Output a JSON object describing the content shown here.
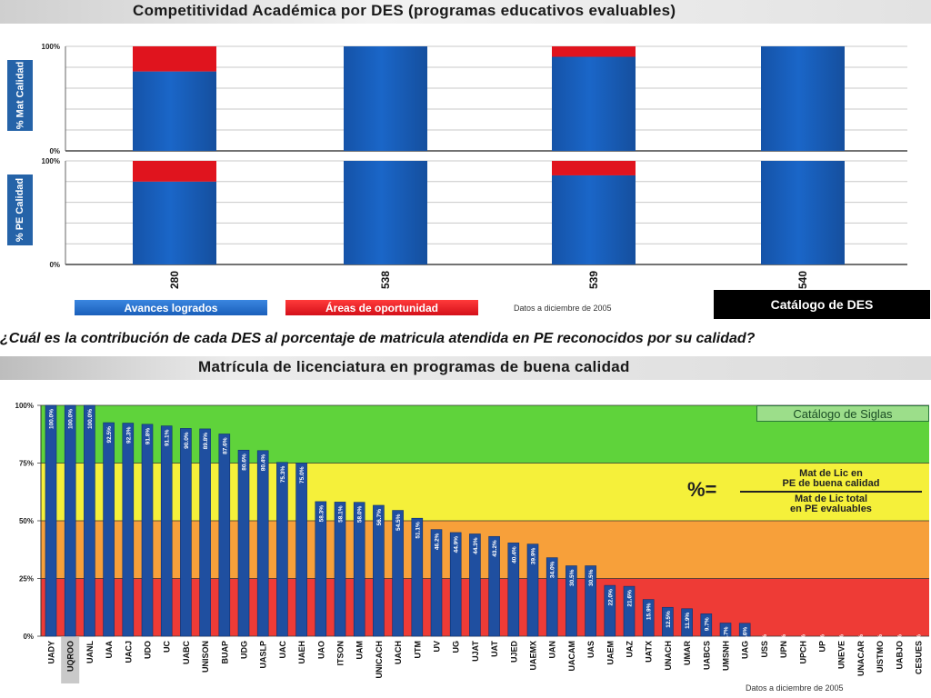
{
  "top": {
    "title": "Competitividad Académica por DES (programas educativos evaluables)",
    "ylabel_top": "% Mat Calidad",
    "ylabel_bottom": "% PE Calidad",
    "legend_achieved": "Avances logrados",
    "legend_opportunity": "Áreas de oportunidad",
    "note": "Datos a diciembre de 2005",
    "catalog_button": "Catálogo de DES",
    "colors": {
      "blue": "#1a66c8",
      "red": "#e0141e"
    }
  },
  "question": "¿Cuál es la contribución de cada DES al porcentaje de matricula atendida en PE reconocidos por su calidad?",
  "bottom": {
    "title": "Matrícula de licenciatura en programas de buena calidad",
    "siglas_button": "Catálogo de Siglas",
    "note": "Datos a diciembre de 2005",
    "formula": {
      "symbol": "%=",
      "num_line1": "Mat de Lic en",
      "num_line2": "PE de buena calidad",
      "den_line1": "Mat de Lic total",
      "den_line2": "en PE evaluables"
    },
    "colors": {
      "green": "#5fd33b",
      "yellow": "#f5f03a",
      "orange": "#f7a03a",
      "red": "#ee3b36",
      "bar": "#1f4fa0"
    }
  },
  "chart_data": [
    {
      "type": "bar",
      "title": "% Mat Calidad",
      "ylabel": "% Mat Calidad",
      "categories": [
        "280",
        "538",
        "539",
        "540"
      ],
      "series": [
        {
          "name": "Avances logrados",
          "values": [
            76,
            100,
            90,
            100
          ]
        },
        {
          "name": "Áreas de oportunidad",
          "values": [
            24,
            0,
            10,
            0
          ]
        }
      ],
      "stacked": true,
      "ylim": [
        0,
        100
      ],
      "yticks": [
        "0%",
        "100%"
      ]
    },
    {
      "type": "bar",
      "title": "% PE Calidad",
      "ylabel": "% PE Calidad",
      "categories": [
        "280",
        "538",
        "539",
        "540"
      ],
      "series": [
        {
          "name": "Avances logrados",
          "values": [
            80,
            100,
            86,
            100
          ]
        },
        {
          "name": "Áreas de oportunidad",
          "values": [
            20,
            0,
            14,
            0
          ]
        }
      ],
      "stacked": true,
      "ylim": [
        0,
        100
      ],
      "yticks": [
        "0%",
        "100%"
      ]
    },
    {
      "type": "bar",
      "title": "Matrícula de licenciatura en programas de buena calidad",
      "ylim": [
        0,
        100
      ],
      "yticks": [
        "0%",
        "25%",
        "50%",
        "75%",
        "100%"
      ],
      "highlighted_category": "UQROO",
      "categories": [
        "UADY",
        "UQROO",
        "UANL",
        "UAA",
        "UACJ",
        "UDO",
        "UC",
        "UABC",
        "UNISON",
        "BUAP",
        "UDG",
        "UASLP",
        "UAC",
        "UAEH",
        "UAO",
        "ITSON",
        "UAM",
        "UNICACH",
        "UACH",
        "UTM",
        "UV",
        "UG",
        "UJAT",
        "UAT",
        "UJED",
        "UAEMX",
        "UAN",
        "UACAM",
        "UAS",
        "UAEM",
        "UAZ",
        "UATX",
        "UNACH",
        "UMAR",
        "UABCS",
        "UMSNH",
        "UAG",
        "USS",
        "UPN",
        "UPCH",
        "UP",
        "UNEVE",
        "UNACAR",
        "UISTMO",
        "UABJO",
        "CESUES"
      ],
      "values": [
        100,
        100,
        100,
        92.5,
        92.3,
        91.8,
        91.1,
        90.0,
        89.8,
        87.6,
        80.6,
        80.4,
        75.3,
        75.0,
        58.3,
        58.1,
        58.0,
        56.7,
        54.5,
        51.1,
        46.2,
        44.9,
        44.3,
        43.2,
        40.4,
        39.9,
        34.0,
        30.5,
        30.5,
        22.0,
        21.6,
        15.9,
        12.5,
        11.9,
        9.7,
        5.7,
        5.6,
        0.0,
        0.0,
        0.0,
        0.0,
        0.0,
        0.0,
        0.0,
        0.0,
        0.0
      ],
      "labels": [
        "100.0%",
        "100.0%",
        "100.0%",
        "92.5%",
        "92.3%",
        "91.8%",
        "91.1%",
        "90.0%",
        "89.8%",
        "87.6%",
        "80.6%",
        "80.4%",
        "75.3%",
        "75.0%",
        "58.3%",
        "58.1%",
        "58.0%",
        "56.7%",
        "54.5%",
        "51.1%",
        "46.2%",
        "44.9%",
        "44.3%",
        "43.2%",
        "40.4%",
        "39.9%",
        "34.0%",
        "30.5%",
        "30.5%",
        "22.0%",
        "21.6%",
        "15.9%",
        "12.5%",
        "11.9%",
        "9.7%",
        "5.7%",
        "5.6%",
        "0.0%",
        "0.0%",
        "0.0%",
        "0.0%",
        "0.0%",
        "0.0%",
        "0.0%",
        "0.0%",
        "0.0%"
      ]
    }
  ]
}
